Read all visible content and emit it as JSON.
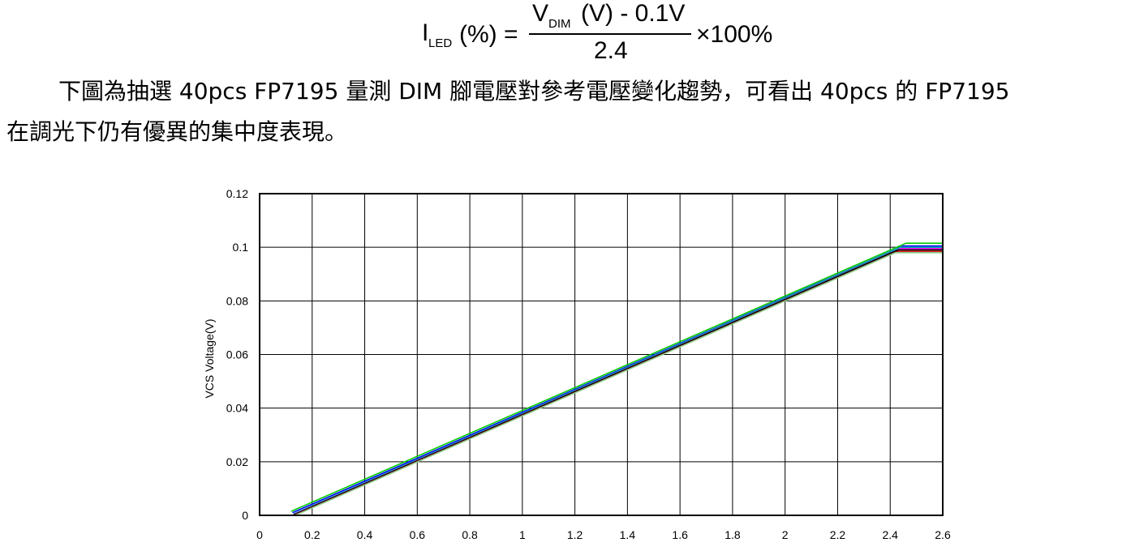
{
  "formula": {
    "lhs_symbol": "I",
    "lhs_subscript": "LED",
    "lhs_unit": "(%) =",
    "numerator_v": "V",
    "numerator_subscript": "DIM",
    "numerator_rest": "(V) - 0.1V",
    "denominator": "2.4",
    "rhs": "×100%"
  },
  "paragraph": {
    "line1": "下圖為抽選 40pcs  FP7195 量測 DIM 腳電壓對參考電壓變化趨勢，可看出 40pcs 的 FP7195",
    "line2": "在調光下仍有優異的集中度表現。"
  },
  "chart_data": {
    "type": "line",
    "title": "",
    "xlabel": "",
    "ylabel": "VCS Voltage(V)",
    "xlim": [
      0,
      2.6
    ],
    "ylim": [
      0,
      0.12
    ],
    "x_ticks": [
      "0",
      "0.2",
      "0.4",
      "0.6",
      "0.8",
      "1",
      "1.2",
      "1.4",
      "1.6",
      "1.8",
      "2",
      "2.2",
      "2.4",
      "2.6"
    ],
    "y_ticks": [
      "0",
      "0.02",
      "0.04",
      "0.06",
      "0.08",
      "0.1",
      "0.12"
    ],
    "grid": true,
    "legend": "none",
    "series": [
      {
        "color": "#00cc00",
        "x": [
          0.12,
          2.46,
          2.6
        ],
        "y": [
          0.0015,
          0.1015,
          0.1015
        ]
      },
      {
        "color": "#0000ff",
        "x": [
          0.125,
          2.45,
          2.6
        ],
        "y": [
          0.001,
          0.1005,
          0.1005
        ]
      },
      {
        "color": "#00aaaa",
        "x": [
          0.128,
          2.44,
          2.6
        ],
        "y": [
          0.0005,
          0.1,
          0.1
        ]
      },
      {
        "color": "#ff00ff",
        "x": [
          0.13,
          2.44,
          2.6
        ],
        "y": [
          0.0003,
          0.0995,
          0.0995
        ]
      },
      {
        "color": "#000000",
        "x": [
          0.13,
          2.43,
          2.6
        ],
        "y": [
          0.0002,
          0.099,
          0.099
        ]
      },
      {
        "color": "#cc0000",
        "x": [
          0.132,
          2.43,
          2.6
        ],
        "y": [
          0.0,
          0.0985,
          0.0985
        ]
      },
      {
        "color": "#88cc88",
        "x": [
          0.135,
          2.42,
          2.6
        ],
        "y": [
          0.0,
          0.098,
          0.098
        ]
      }
    ]
  }
}
